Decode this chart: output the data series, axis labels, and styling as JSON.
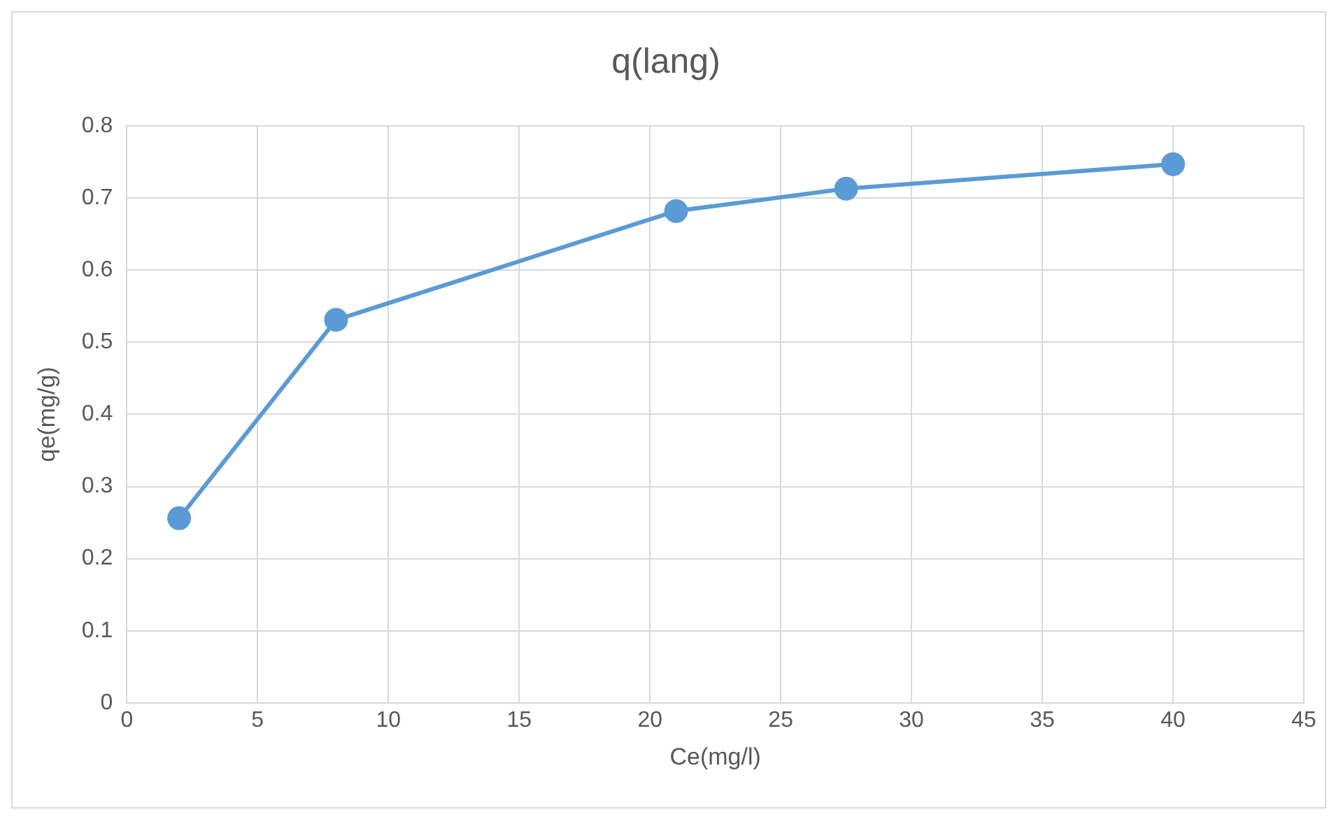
{
  "chart_data": {
    "type": "line",
    "title": "q(lang)",
    "xlabel": "Ce(mg/l)",
    "ylabel": "qe(mg/g)",
    "x": [
      2,
      8,
      21,
      27.5,
      40
    ],
    "series": [
      {
        "color": "#5b9bd5",
        "values": [
          0.256,
          0.531,
          0.682,
          0.713,
          0.747
        ]
      }
    ],
    "xlim": [
      0,
      45
    ],
    "xticks": [
      0,
      5,
      10,
      15,
      20,
      25,
      30,
      35,
      40,
      45
    ],
    "ylim": [
      0,
      0.8
    ],
    "yticks": [
      0,
      0.1,
      0.2,
      0.3,
      0.4,
      0.5,
      0.6,
      0.7,
      0.8
    ],
    "grid": true,
    "legend": false,
    "marker": "circle",
    "line_style": "solid"
  }
}
